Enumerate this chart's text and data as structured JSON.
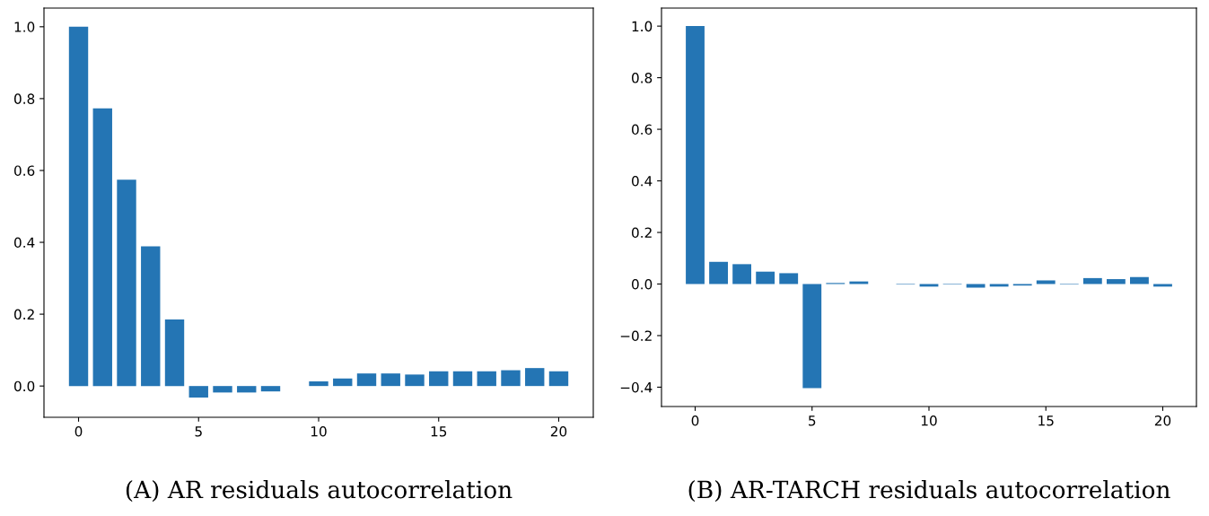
{
  "chart_data": [
    {
      "type": "bar",
      "xlabel": "(A) AR residuals autocorrelation",
      "x": [
        0,
        1,
        2,
        3,
        4,
        5,
        6,
        7,
        8,
        9,
        10,
        11,
        12,
        13,
        14,
        15,
        16,
        17,
        18,
        19,
        20
      ],
      "values": [
        1.0,
        0.773,
        0.574,
        0.389,
        0.185,
        -0.032,
        -0.018,
        -0.018,
        -0.015,
        0,
        0.013,
        0.021,
        0.035,
        0.035,
        0.032,
        0.041,
        0.041,
        0.041,
        0.044,
        0.05,
        0.041
      ],
      "color": "#2475b4",
      "xlim": [
        -1.44,
        21.44
      ],
      "xticks": [
        0,
        5,
        10,
        15,
        20
      ],
      "ylim": [
        -0.087,
        1.052
      ],
      "yticks": [
        {
          "value": 0,
          "label": "0.0"
        },
        0.2,
        0.4,
        0.6,
        0.8,
        {
          "value": 1,
          "label": "1.0"
        }
      ],
      "grid": false
    },
    {
      "type": "bar",
      "xlabel": "(B) AR-TARCH residuals autocorrelation",
      "x": [
        0,
        1,
        2,
        3,
        4,
        5,
        6,
        7,
        8,
        9,
        10,
        11,
        12,
        13,
        14,
        15,
        16,
        17,
        18,
        19,
        20
      ],
      "values": [
        1.0,
        0.086,
        0.077,
        0.048,
        0.042,
        -0.404,
        0.004,
        0.01,
        0,
        -0.002,
        -0.01,
        -0.002,
        -0.014,
        -0.01,
        -0.006,
        0.014,
        -0.002,
        0.023,
        0.019,
        0.027,
        -0.01
      ],
      "color": "#2475b4",
      "xlim": [
        -1.44,
        21.44
      ],
      "xticks": [
        0,
        5,
        10,
        15,
        20
      ],
      "ylim": [
        -0.475,
        1.07
      ],
      "yticks": [
        {
          "value": -0.4,
          "label": "−0.4"
        },
        {
          "value": -0.2,
          "label": "−0.2"
        },
        {
          "value": 0,
          "label": "0.0"
        },
        0.2,
        0.4,
        0.6,
        0.8,
        {
          "value": 1,
          "label": "1.0"
        }
      ],
      "grid": false
    }
  ]
}
